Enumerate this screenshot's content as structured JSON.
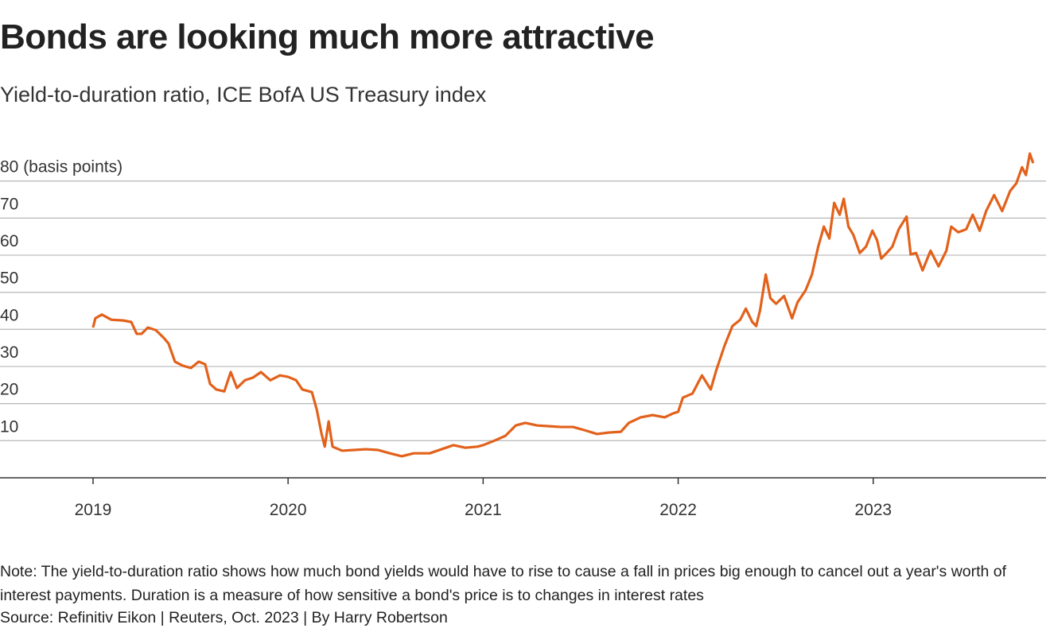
{
  "chart_data": {
    "type": "line",
    "title": "Bonds are looking much more attractive",
    "subtitle": "Yield-to-duration ratio, ICE BofA US Treasury index",
    "note": "Note: The yield-to-duration ratio shows how much bond yields would have to rise to cause a fall in prices big enough to cancel out a year's worth of interest payments. Duration is a measure of how sensitive a bond's price is to changes in interest rates",
    "source": "Source: Refinitiv Eikon | Reuters, Oct. 2023 | By Harry Robertson",
    "x": [
      2019,
      2019.012,
      2019.045,
      2019.094,
      2019.155,
      2019.196,
      2019.224,
      2019.249,
      2019.281,
      2019.322,
      2019.363,
      2019.387,
      2019.42,
      2019.461,
      2019.502,
      2019.542,
      2019.575,
      2019.6,
      2019.632,
      2019.673,
      2019.706,
      2019.738,
      2019.779,
      2019.82,
      2019.861,
      2019.909,
      2019.958,
      2020.0,
      2020.041,
      2020.073,
      2020.122,
      2020.147,
      2020.171,
      2020.188,
      2020.208,
      2020.228,
      2020.277,
      2020.338,
      2020.399,
      2020.461,
      2020.522,
      2020.583,
      2020.644,
      2020.726,
      2020.787,
      2020.848,
      2020.909,
      2020.971,
      2021.0,
      2021.053,
      2021.114,
      2021.167,
      2021.216,
      2021.278,
      2021.339,
      2021.4,
      2021.461,
      2021.522,
      2021.584,
      2021.645,
      2021.706,
      2021.747,
      2021.808,
      2021.869,
      2021.931,
      2021.971,
      2022.0,
      2022.024,
      2022.073,
      2022.122,
      2022.167,
      2022.196,
      2022.237,
      2022.278,
      2022.318,
      2022.347,
      2022.38,
      2022.4,
      2022.42,
      2022.449,
      2022.473,
      2022.502,
      2022.543,
      2022.584,
      2022.612,
      2022.653,
      2022.686,
      2022.718,
      2022.747,
      2022.775,
      2022.8,
      2022.828,
      2022.849,
      2022.873,
      2022.898,
      2022.931,
      2022.963,
      2022.996,
      2023.02,
      2023.041,
      2023.069,
      2023.098,
      2023.131,
      2023.171,
      2023.192,
      2023.22,
      2023.253,
      2023.294,
      2023.335,
      2023.375,
      2023.4,
      2023.436,
      2023.477,
      2023.51,
      2023.546,
      2023.579,
      2023.62,
      2023.661,
      2023.702,
      2023.734,
      2023.763,
      2023.783,
      2023.803,
      2023.82
    ],
    "series": [
      {
        "color": "#e2611b",
        "values": [
          40.5,
          43,
          44,
          42.6,
          42.4,
          42,
          38.8,
          38.8,
          40.5,
          39.8,
          37.7,
          36.2,
          31.3,
          30.2,
          29.6,
          31.3,
          30.6,
          25.3,
          23.8,
          23.3,
          28.5,
          24.2,
          26.3,
          27,
          28.5,
          26.3,
          27.6,
          27.2,
          26.3,
          23.8,
          23.1,
          18.4,
          12,
          8.4,
          15.2,
          8.4,
          7.3,
          7.5,
          7.7,
          7.5,
          6.6,
          5.8,
          6.6,
          6.6,
          7.7,
          8.8,
          8.1,
          8.4,
          8.8,
          9.9,
          11.3,
          14.1,
          14.8,
          14.1,
          13.9,
          13.7,
          13.7,
          12.8,
          11.8,
          12.2,
          12.4,
          14.8,
          16.3,
          16.9,
          16.3,
          17.3,
          17.8,
          21.6,
          22.7,
          27.6,
          23.8,
          29.1,
          35.5,
          40.9,
          42.6,
          45.6,
          42,
          40.9,
          45.2,
          54.8,
          48.4,
          46.9,
          49,
          43,
          47.3,
          50.5,
          54.8,
          62.3,
          67.7,
          64.5,
          74.1,
          70.9,
          75.2,
          67.7,
          65.5,
          60.6,
          62.3,
          66.6,
          64,
          59.1,
          60.6,
          62.3,
          67,
          70.4,
          60.2,
          60.6,
          55.9,
          61.2,
          57,
          61.2,
          67.7,
          66.2,
          67,
          70.9,
          66.6,
          71.9,
          76.2,
          71.9,
          77.3,
          79.4,
          83.7,
          81.6,
          87.4,
          84.8
        ]
      }
    ],
    "xlim": [
      2018.523,
      2023.886
    ],
    "xticks": [
      2019,
      2020,
      2021,
      2022,
      2023
    ],
    "ylim": [
      0,
      90
    ],
    "yticks": [
      10,
      20,
      30,
      40,
      50,
      60,
      70,
      {
        "value": 80,
        "label": "80 (basis points)"
      }
    ],
    "grid": true
  }
}
